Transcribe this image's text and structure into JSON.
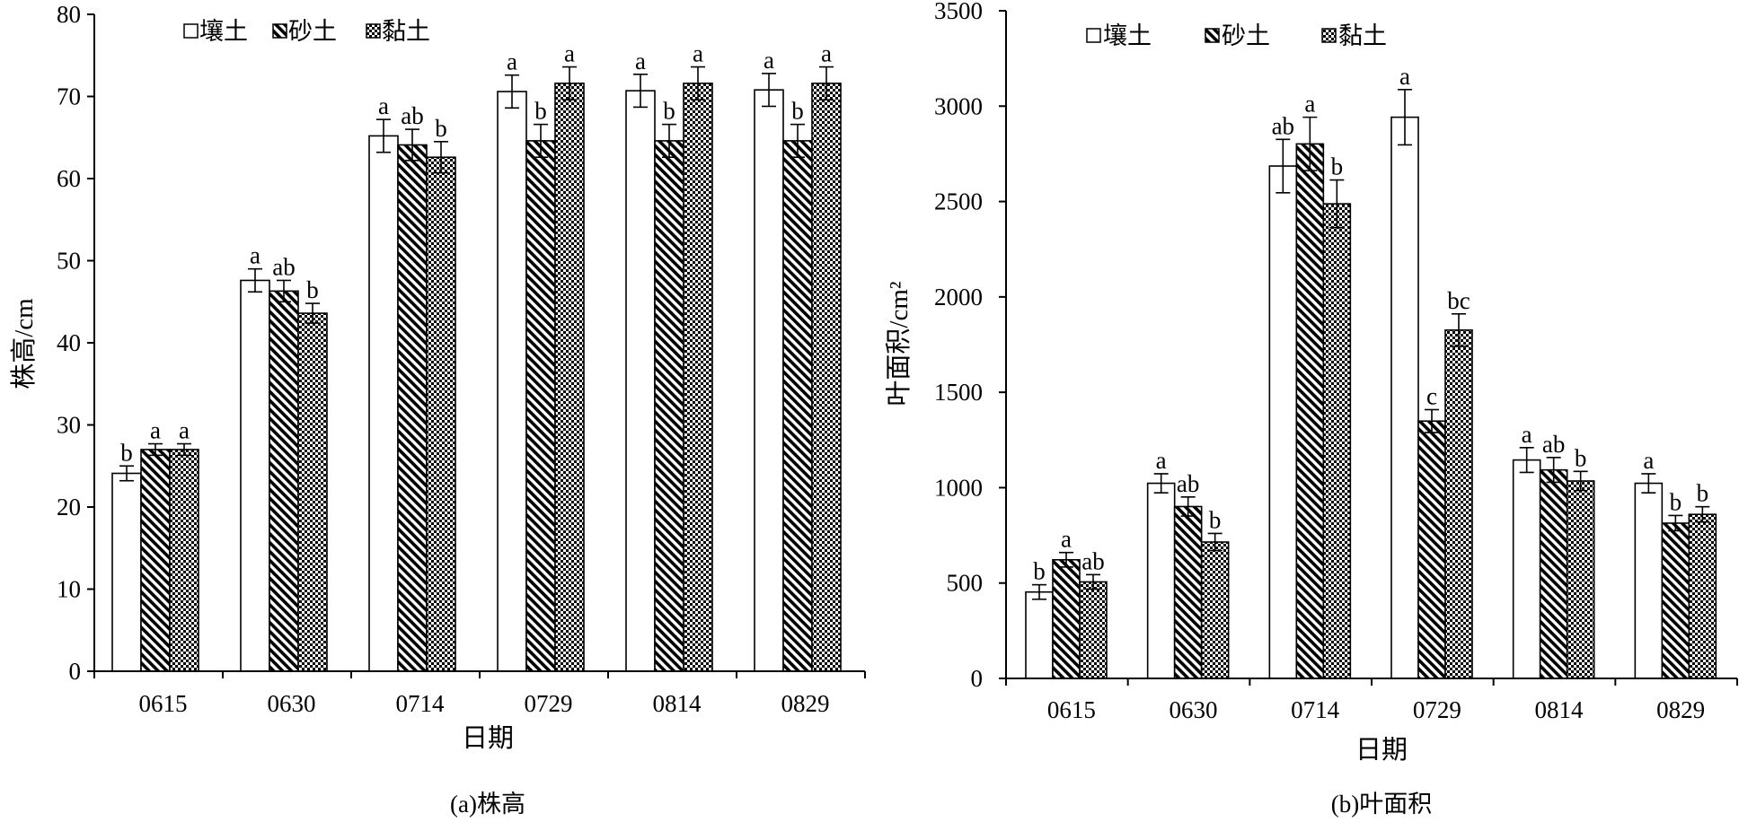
{
  "chart_data": [
    {
      "type": "bar",
      "xlabel": "日期",
      "ylabel": "株高/cm",
      "caption": "(a)株高",
      "categories": [
        "0615",
        "0630",
        "0714",
        "0729",
        "0814",
        "0829"
      ],
      "ylim": [
        0,
        80
      ],
      "yticks": [
        0,
        10,
        20,
        30,
        40,
        50,
        60,
        70,
        80
      ],
      "legend": "top-left",
      "grid": false,
      "series": [
        {
          "name": "壤土",
          "pattern": "open",
          "values": [
            24.1,
            47.6,
            65.2,
            70.6,
            70.7,
            70.8
          ],
          "errors": [
            0.9,
            1.4,
            2.0,
            2.0,
            2.0,
            2.0
          ],
          "letters": [
            "b",
            "a",
            "a",
            "a",
            "a",
            "a"
          ]
        },
        {
          "name": "砂土",
          "pattern": "diagonal",
          "values": [
            27.0,
            46.3,
            64.1,
            64.6,
            64.6,
            64.6
          ],
          "errors": [
            0.7,
            1.3,
            1.9,
            2.0,
            2.0,
            2.0
          ],
          "letters": [
            "a",
            "ab",
            "ab",
            "b",
            "b",
            "b"
          ]
        },
        {
          "name": "黏土",
          "pattern": "checker",
          "values": [
            27.0,
            43.6,
            62.6,
            71.6,
            71.6,
            71.6
          ],
          "errors": [
            0.7,
            1.2,
            1.9,
            2.0,
            2.0,
            2.0
          ],
          "letters": [
            "a",
            "b",
            "b",
            "a",
            "a",
            "a"
          ]
        }
      ]
    },
    {
      "type": "bar",
      "xlabel": "日期",
      "ylabel": "叶面积/cm²",
      "caption": "(b)叶面积",
      "categories": [
        "0615",
        "0630",
        "0714",
        "0729",
        "0814",
        "0829"
      ],
      "ylim": [
        0,
        3500
      ],
      "yticks": [
        0,
        500,
        1000,
        1500,
        2000,
        2500,
        3000,
        3500
      ],
      "legend": "top-left",
      "grid": false,
      "series": [
        {
          "name": "壤土",
          "pattern": "open",
          "values": [
            453,
            1023,
            2686,
            2942,
            1145,
            1023
          ],
          "errors": [
            38,
            50,
            140,
            145,
            65,
            50
          ],
          "letters": [
            "b",
            "a",
            "ab",
            "a",
            "a",
            "a"
          ]
        },
        {
          "name": "砂土",
          "pattern": "diagonal",
          "values": [
            622,
            901,
            2802,
            1349,
            1093,
            814
          ],
          "errors": [
            38,
            50,
            140,
            60,
            65,
            40
          ],
          "letters": [
            "a",
            "ab",
            "a",
            "c",
            "ab",
            "b"
          ]
        },
        {
          "name": "黏土",
          "pattern": "checker",
          "values": [
            506,
            715,
            2488,
            1826,
            1035,
            860
          ],
          "errors": [
            38,
            45,
            125,
            85,
            50,
            40
          ],
          "letters": [
            "ab",
            "b",
            "b",
            "bc",
            "b",
            "b"
          ]
        }
      ]
    }
  ]
}
